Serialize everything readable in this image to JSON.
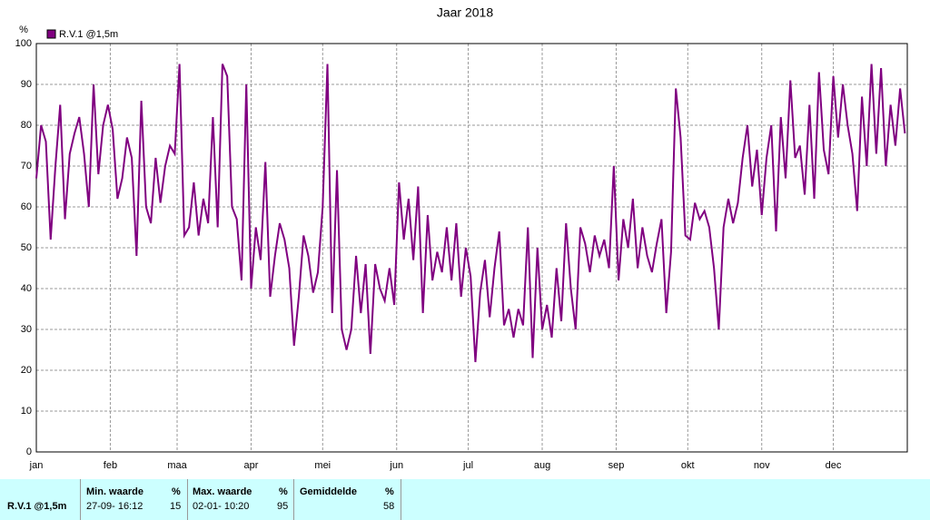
{
  "chart_data": {
    "type": "line",
    "title": "Jaar 2018",
    "ylabel": "%",
    "xlim": [
      0,
      365
    ],
    "xticks": [
      {
        "value": 0,
        "label": "jan"
      },
      {
        "value": 31,
        "label": "feb"
      },
      {
        "value": 59,
        "label": "maa"
      },
      {
        "value": 90,
        "label": "apr"
      },
      {
        "value": 120,
        "label": "mei"
      },
      {
        "value": 151,
        "label": "jun"
      },
      {
        "value": 181,
        "label": "jul"
      },
      {
        "value": 212,
        "label": "aug"
      },
      {
        "value": 243,
        "label": "sep"
      },
      {
        "value": 273,
        "label": "okt"
      },
      {
        "value": 304,
        "label": "nov"
      },
      {
        "value": 334,
        "label": "dec"
      }
    ],
    "ylim": [
      0,
      100
    ],
    "yticks": [
      0,
      10,
      20,
      30,
      40,
      50,
      60,
      70,
      80,
      90,
      100
    ],
    "grid": true,
    "legend": "top-left",
    "x": [
      0,
      2,
      4,
      6,
      8,
      10,
      12,
      14,
      16,
      18,
      20,
      22,
      24,
      26,
      28,
      30,
      32,
      34,
      36,
      38,
      40,
      42,
      44,
      46,
      48,
      50,
      52,
      54,
      56,
      58,
      60,
      62,
      64,
      66,
      68,
      70,
      72,
      74,
      76,
      78,
      80,
      82,
      84,
      86,
      88,
      90,
      92,
      94,
      96,
      98,
      100,
      102,
      104,
      106,
      108,
      110,
      112,
      114,
      116,
      118,
      120,
      122,
      124,
      126,
      128,
      130,
      132,
      134,
      136,
      138,
      140,
      142,
      144,
      146,
      148,
      150,
      152,
      154,
      156,
      158,
      160,
      162,
      164,
      166,
      168,
      170,
      172,
      174,
      176,
      178,
      180,
      182,
      184,
      186,
      188,
      190,
      192,
      194,
      196,
      198,
      200,
      202,
      204,
      206,
      208,
      210,
      212,
      214,
      216,
      218,
      220,
      222,
      224,
      226,
      228,
      230,
      232,
      234,
      236,
      238,
      240,
      242,
      244,
      246,
      248,
      250,
      252,
      254,
      256,
      258,
      260,
      262,
      264,
      266,
      268,
      270,
      272,
      274,
      276,
      278,
      280,
      282,
      284,
      286,
      288,
      290,
      292,
      294,
      296,
      298,
      300,
      302,
      304,
      306,
      308,
      310,
      312,
      314,
      316,
      318,
      320,
      322,
      324,
      326,
      328,
      330,
      332,
      334,
      336,
      338,
      340,
      342,
      344,
      346,
      348,
      350,
      352,
      354,
      356,
      358,
      360,
      362,
      364
    ],
    "series": [
      {
        "name": "R.V.1 @1,5m",
        "color": "#800080",
        "values": [
          67,
          80,
          76,
          52,
          70,
          85,
          57,
          73,
          78,
          82,
          73,
          60,
          90,
          68,
          80,
          85,
          79,
          62,
          67,
          77,
          72,
          48,
          86,
          60,
          56,
          72,
          61,
          70,
          75,
          73,
          95,
          53,
          55,
          66,
          53,
          62,
          56,
          82,
          55,
          95,
          92,
          60,
          57,
          42,
          90,
          40,
          55,
          47,
          71,
          38,
          48,
          56,
          52,
          45,
          26,
          38,
          53,
          48,
          39,
          44,
          60,
          95,
          34,
          69,
          30,
          25,
          30,
          48,
          34,
          46,
          24,
          46,
          40,
          37,
          45,
          36,
          66,
          52,
          62,
          47,
          65,
          34,
          58,
          42,
          49,
          44,
          55,
          42,
          56,
          38,
          50,
          43,
          22,
          39,
          47,
          33,
          45,
          54,
          31,
          35,
          28,
          35,
          31,
          55,
          23,
          50,
          30,
          36,
          28,
          45,
          32,
          56,
          40,
          30,
          55,
          51,
          44,
          53,
          48,
          52,
          45,
          70,
          42,
          57,
          50,
          62,
          45,
          55,
          48,
          44,
          51,
          57,
          34,
          49,
          89,
          77,
          53,
          52,
          61,
          57,
          59,
          55,
          45,
          30,
          55,
          62,
          56,
          61,
          72,
          80,
          65,
          74,
          58,
          72,
          80,
          54,
          82,
          67,
          91,
          72,
          75,
          63,
          85,
          62,
          93,
          74,
          68,
          92,
          77,
          90,
          80,
          73,
          59,
          87,
          70,
          95,
          73,
          94,
          70,
          85,
          75,
          89,
          78
        ]
      }
    ]
  },
  "stats": {
    "series_label": "R.V.1 @1,5m",
    "columns": [
      {
        "header": "Min. waarde",
        "unit": "%",
        "time": "27-09- 16:12",
        "value": "15"
      },
      {
        "header": "Max. waarde",
        "unit": "%",
        "time": "02-01- 10:20",
        "value": "95"
      },
      {
        "header": "Gemiddelde",
        "unit": "%",
        "value": "58"
      }
    ]
  }
}
